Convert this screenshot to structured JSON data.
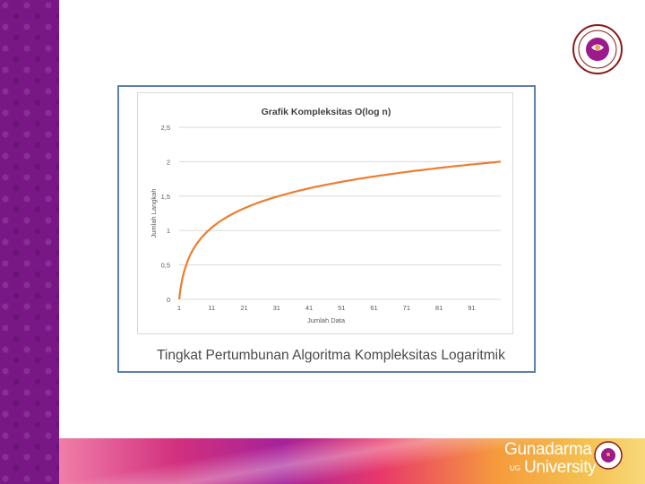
{
  "caption": "Tingkat Pertumbunan Algoritma Kompleksitas Logaritmik",
  "brand": {
    "line1": "Gunadarma",
    "line2": "University",
    "mark": "UG"
  },
  "colors": {
    "sidebar": "#7a1787",
    "curve": "#ed7d31",
    "frame": "#5b7fae"
  },
  "logo_icon": "university-seal-icon",
  "chart_data": {
    "type": "line",
    "title": "Grafik Kompleksitas O(log n)",
    "xlabel": "Jumlah Data",
    "ylabel": "Jumlah Langkah",
    "x_ticks": [
      "1",
      "11",
      "21",
      "31",
      "41",
      "51",
      "61",
      "71",
      "81",
      "91"
    ],
    "y_ticks": [
      "0",
      "0,5",
      "1",
      "1,5",
      "2",
      "2,5"
    ],
    "ylim": [
      0,
      2.5
    ],
    "xlim": [
      1,
      100
    ],
    "grid": true,
    "series": [
      {
        "x": [
          1,
          2,
          3,
          5,
          8,
          11,
          16,
          21,
          31,
          41,
          51,
          61,
          71,
          81,
          91,
          100
        ],
        "values": [
          0,
          0.301,
          0.477,
          0.699,
          0.903,
          1.041,
          1.204,
          1.322,
          1.491,
          1.613,
          1.708,
          1.785,
          1.851,
          1.908,
          1.959,
          2.0
        ]
      }
    ]
  }
}
